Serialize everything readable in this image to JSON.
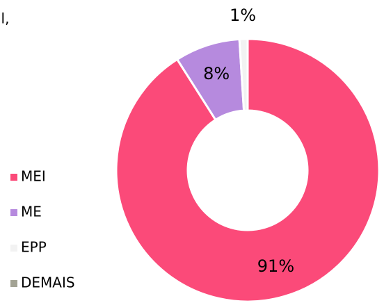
{
  "chart_data": {
    "type": "donut",
    "title": "il,",
    "categories": [
      "MEI",
      "ME",
      "EPP",
      "DEMAIS"
    ],
    "values": [
      91,
      8,
      1,
      0
    ],
    "value_labels": [
      "91%",
      "8%",
      "1%",
      null
    ],
    "colors": [
      "#fb4a79",
      "#b68ade",
      "#f2f2f2",
      "#a3a394"
    ],
    "legend": "left"
  }
}
